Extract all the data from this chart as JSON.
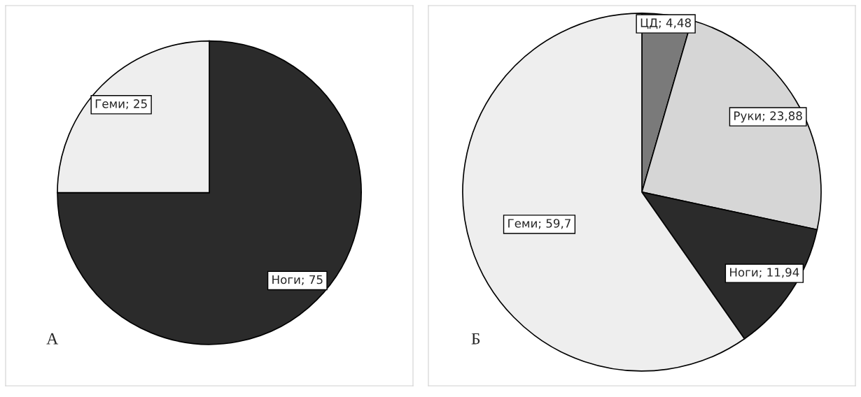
{
  "chart_data": [
    {
      "type": "pie",
      "categories": [
        "Ноги",
        "Геми"
      ],
      "values": [
        75,
        25
      ],
      "value_labels": [
        "75",
        "25"
      ],
      "colors": [
        "#2b2b2b",
        "#eeeeee"
      ],
      "annotations": [
        "А"
      ]
    },
    {
      "type": "pie",
      "categories": [
        "ЦД",
        "Руки",
        "Ноги",
        "Геми"
      ],
      "values": [
        4.48,
        23.88,
        11.94,
        59.7
      ],
      "value_labels": [
        "4,48",
        "23,88",
        "11,94",
        "59,7"
      ],
      "colors": [
        "#7a7a7a",
        "#d6d6d6",
        "#2b2b2b",
        "#eeeeee"
      ],
      "annotations": [
        "Б"
      ]
    }
  ]
}
